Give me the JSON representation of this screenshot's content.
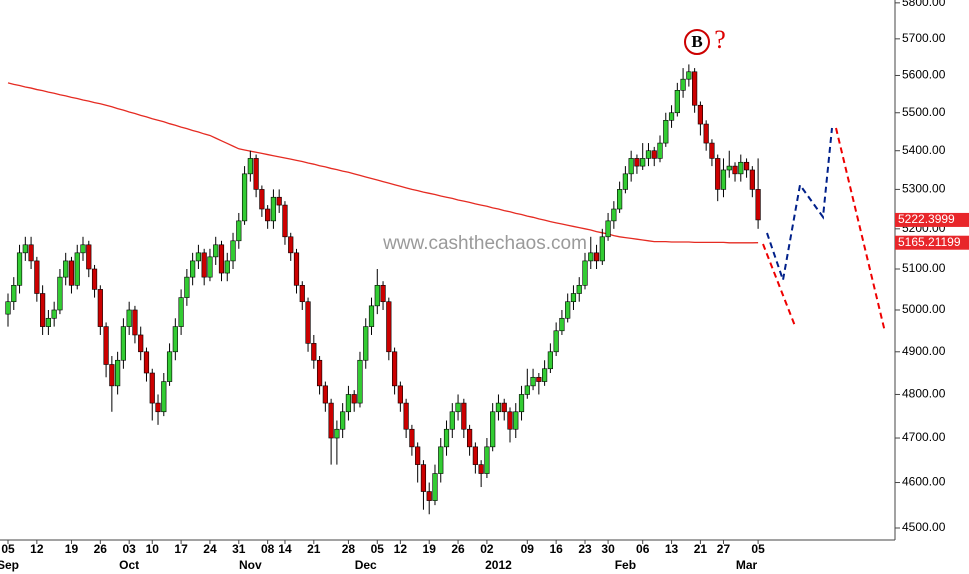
{
  "chart_data": {
    "type": "candlestick",
    "log_scale": true,
    "up_color": "#33cc33",
    "down_color": "#cc0000",
    "ylim": [
      4474,
      5808
    ],
    "yticks": [
      {
        "value": 5800,
        "label": "5800.00"
      },
      {
        "value": 5700,
        "label": "5700.00"
      },
      {
        "value": 5600,
        "label": "5600.00"
      },
      {
        "value": 5500,
        "label": "5500.00"
      },
      {
        "value": 5400,
        "label": "5400.00"
      },
      {
        "value": 5300,
        "label": "5300.00"
      },
      {
        "value": 5200,
        "label": "5200.00"
      },
      {
        "value": 5100,
        "label": "5100.00"
      },
      {
        "value": 5000,
        "label": "5000.00"
      },
      {
        "value": 4900,
        "label": "4900.00"
      },
      {
        "value": 4800,
        "label": "4800.00"
      },
      {
        "value": 4700,
        "label": "4700.00"
      },
      {
        "value": 4600,
        "label": "4600.00"
      },
      {
        "value": 4500,
        "label": "4500.00"
      }
    ],
    "categories": [
      "05",
      null,
      null,
      null,
      null,
      "12",
      null,
      null,
      null,
      null,
      null,
      "19",
      null,
      null,
      null,
      null,
      "26",
      null,
      null,
      null,
      null,
      "03",
      null,
      null,
      null,
      "10",
      null,
      null,
      null,
      null,
      "17",
      null,
      null,
      null,
      null,
      "24",
      null,
      null,
      null,
      null,
      "31",
      null,
      null,
      null,
      null,
      "08",
      null,
      null,
      "14",
      null,
      null,
      null,
      null,
      "21",
      null,
      null,
      null,
      null,
      null,
      "28",
      null,
      null,
      null,
      null,
      "05",
      null,
      null,
      null,
      "12",
      null,
      null,
      null,
      null,
      "19",
      null,
      null,
      null,
      null,
      "26",
      null,
      null,
      null,
      null,
      "02",
      null,
      null,
      null,
      null,
      null,
      null,
      "09",
      null,
      null,
      null,
      null,
      "16",
      null,
      null,
      null,
      null,
      "23",
      null,
      null,
      null,
      "30",
      null,
      null,
      null,
      null,
      null,
      "06",
      null,
      null,
      null,
      null,
      "13",
      null,
      null,
      null,
      null,
      "21",
      null,
      null,
      null,
      "27",
      null,
      null,
      null,
      null,
      null,
      "05"
    ],
    "months": [
      "Sep",
      null,
      null,
      null,
      null,
      null,
      null,
      null,
      null,
      null,
      null,
      null,
      null,
      null,
      null,
      null,
      null,
      null,
      null,
      null,
      null,
      "Oct",
      null,
      null,
      null,
      null,
      null,
      null,
      null,
      null,
      null,
      null,
      null,
      null,
      null,
      null,
      null,
      null,
      null,
      null,
      null,
      null,
      "Nov",
      null,
      null,
      null,
      null,
      null,
      null,
      null,
      null,
      null,
      null,
      null,
      null,
      null,
      null,
      null,
      null,
      null,
      null,
      null,
      "Dec",
      null,
      null,
      null,
      null,
      null,
      null,
      null,
      null,
      null,
      null,
      null,
      null,
      null,
      null,
      null,
      null,
      null,
      null,
      null,
      null,
      null,
      null,
      "2012",
      null,
      null,
      null,
      null,
      null,
      null,
      null,
      null,
      null,
      null,
      null,
      null,
      null,
      null,
      null,
      null,
      null,
      null,
      null,
      null,
      null,
      "Feb",
      null,
      null,
      null,
      null,
      null,
      null,
      null,
      null,
      null,
      null,
      null,
      null,
      null,
      null,
      null,
      null,
      null,
      null,
      null,
      null,
      "Mar",
      null,
      null
    ],
    "candles": [
      [
        4990,
        5040,
        4960,
        5020
      ],
      [
        5020,
        5080,
        5000,
        5060
      ],
      [
        5060,
        5160,
        5040,
        5140
      ],
      [
        5140,
        5180,
        5120,
        5160
      ],
      [
        5160,
        5180,
        5100,
        5120
      ],
      [
        5120,
        5130,
        5020,
        5040
      ],
      [
        5040,
        5060,
        4940,
        4960
      ],
      [
        4960,
        5000,
        4940,
        4980
      ],
      [
        4980,
        5020,
        4960,
        5000
      ],
      [
        5000,
        5100,
        4990,
        5080
      ],
      [
        5080,
        5140,
        5060,
        5120
      ],
      [
        5120,
        5130,
        5040,
        5060
      ],
      [
        5060,
        5160,
        5050,
        5140
      ],
      [
        5140,
        5180,
        5120,
        5160
      ],
      [
        5160,
        5170,
        5080,
        5100
      ],
      [
        5100,
        5110,
        5030,
        5050
      ],
      [
        5050,
        5060,
        4940,
        4960
      ],
      [
        4960,
        4970,
        4840,
        4870
      ],
      [
        4870,
        4890,
        4760,
        4820
      ],
      [
        4820,
        4900,
        4800,
        4880
      ],
      [
        4880,
        4980,
        4860,
        4960
      ],
      [
        4960,
        5020,
        4940,
        5000
      ],
      [
        5000,
        5010,
        4920,
        4940
      ],
      [
        4940,
        4960,
        4880,
        4900
      ],
      [
        4900,
        4910,
        4830,
        4850
      ],
      [
        4850,
        4860,
        4740,
        4780
      ],
      [
        4780,
        4800,
        4730,
        4760
      ],
      [
        4760,
        4850,
        4750,
        4830
      ],
      [
        4830,
        4920,
        4820,
        4900
      ],
      [
        4900,
        4980,
        4880,
        4960
      ],
      [
        4960,
        5050,
        4940,
        5030
      ],
      [
        5030,
        5100,
        5010,
        5080
      ],
      [
        5080,
        5140,
        5060,
        5120
      ],
      [
        5120,
        5160,
        5100,
        5140
      ],
      [
        5140,
        5150,
        5060,
        5080
      ],
      [
        5080,
        5150,
        5070,
        5130
      ],
      [
        5130,
        5180,
        5110,
        5160
      ],
      [
        5160,
        5170,
        5070,
        5090
      ],
      [
        5090,
        5140,
        5070,
        5120
      ],
      [
        5120,
        5190,
        5100,
        5170
      ],
      [
        5170,
        5240,
        5150,
        5220
      ],
      [
        5220,
        5360,
        5210,
        5340
      ],
      [
        5340,
        5400,
        5320,
        5380
      ],
      [
        5380,
        5390,
        5280,
        5300
      ],
      [
        5300,
        5310,
        5230,
        5250
      ],
      [
        5250,
        5260,
        5200,
        5220
      ],
      [
        5220,
        5300,
        5200,
        5280
      ],
      [
        5280,
        5300,
        5240,
        5260
      ],
      [
        5260,
        5270,
        5160,
        5180
      ],
      [
        5180,
        5190,
        5120,
        5140
      ],
      [
        5140,
        5150,
        5040,
        5060
      ],
      [
        5060,
        5070,
        5000,
        5020
      ],
      [
        5020,
        5030,
        4900,
        4920
      ],
      [
        4920,
        4940,
        4860,
        4880
      ],
      [
        4880,
        4890,
        4800,
        4820
      ],
      [
        4820,
        4830,
        4760,
        4780
      ],
      [
        4780,
        4790,
        4640,
        4700
      ],
      [
        4700,
        4740,
        4640,
        4720
      ],
      [
        4720,
        4780,
        4700,
        4760
      ],
      [
        4760,
        4820,
        4740,
        4800
      ],
      [
        4800,
        4810,
        4760,
        4780
      ],
      [
        4780,
        4900,
        4770,
        4880
      ],
      [
        4880,
        4980,
        4860,
        4960
      ],
      [
        4960,
        5030,
        4940,
        5010
      ],
      [
        5010,
        5100,
        4990,
        5060
      ],
      [
        5060,
        5070,
        5000,
        5020
      ],
      [
        5020,
        5030,
        4880,
        4900
      ],
      [
        4900,
        4910,
        4800,
        4820
      ],
      [
        4820,
        4830,
        4760,
        4780
      ],
      [
        4780,
        4790,
        4700,
        4720
      ],
      [
        4720,
        4730,
        4660,
        4680
      ],
      [
        4680,
        4690,
        4600,
        4640
      ],
      [
        4640,
        4650,
        4540,
        4580
      ],
      [
        4580,
        4600,
        4530,
        4560
      ],
      [
        4560,
        4640,
        4550,
        4620
      ],
      [
        4620,
        4700,
        4600,
        4680
      ],
      [
        4680,
        4740,
        4660,
        4720
      ],
      [
        4720,
        4780,
        4700,
        4760
      ],
      [
        4760,
        4800,
        4740,
        4780
      ],
      [
        4780,
        4790,
        4700,
        4720
      ],
      [
        4720,
        4730,
        4660,
        4680
      ],
      [
        4680,
        4690,
        4620,
        4640
      ],
      [
        4640,
        4650,
        4590,
        4620
      ],
      [
        4620,
        4700,
        4610,
        4680
      ],
      [
        4680,
        4780,
        4670,
        4760
      ],
      [
        4760,
        4800,
        4740,
        4780
      ],
      [
        4780,
        4790,
        4740,
        4760
      ],
      [
        4760,
        4770,
        4690,
        4720
      ],
      [
        4720,
        4780,
        4700,
        4760
      ],
      [
        4760,
        4820,
        4740,
        4800
      ],
      [
        4800,
        4860,
        4790,
        4820
      ],
      [
        4820,
        4860,
        4810,
        4840
      ],
      [
        4840,
        4850,
        4800,
        4830
      ],
      [
        4830,
        4880,
        4820,
        4860
      ],
      [
        4860,
        4920,
        4850,
        4900
      ],
      [
        4900,
        4970,
        4890,
        4950
      ],
      [
        4950,
        5000,
        4940,
        4980
      ],
      [
        4980,
        5040,
        4970,
        5020
      ],
      [
        5020,
        5060,
        5000,
        5040
      ],
      [
        5040,
        5080,
        5020,
        5060
      ],
      [
        5060,
        5140,
        5050,
        5120
      ],
      [
        5120,
        5180,
        5100,
        5140
      ],
      [
        5140,
        5160,
        5100,
        5120
      ],
      [
        5120,
        5200,
        5110,
        5180
      ],
      [
        5180,
        5240,
        5170,
        5220
      ],
      [
        5220,
        5270,
        5200,
        5250
      ],
      [
        5250,
        5320,
        5240,
        5300
      ],
      [
        5300,
        5360,
        5290,
        5340
      ],
      [
        5340,
        5400,
        5320,
        5380
      ],
      [
        5380,
        5390,
        5340,
        5360
      ],
      [
        5360,
        5420,
        5350,
        5380
      ],
      [
        5380,
        5420,
        5360,
        5400
      ],
      [
        5400,
        5410,
        5360,
        5380
      ],
      [
        5380,
        5440,
        5370,
        5420
      ],
      [
        5420,
        5500,
        5410,
        5480
      ],
      [
        5480,
        5520,
        5460,
        5500
      ],
      [
        5500,
        5580,
        5490,
        5560
      ],
      [
        5560,
        5620,
        5540,
        5590
      ],
      [
        5590,
        5630,
        5570,
        5610
      ],
      [
        5610,
        5620,
        5500,
        5520
      ],
      [
        5520,
        5530,
        5440,
        5470
      ],
      [
        5470,
        5480,
        5400,
        5420
      ],
      [
        5420,
        5430,
        5360,
        5380
      ],
      [
        5380,
        5390,
        5270,
        5300
      ],
      [
        5300,
        5380,
        5280,
        5350
      ],
      [
        5350,
        5400,
        5330,
        5360
      ],
      [
        5360,
        5370,
        5320,
        5340
      ],
      [
        5340,
        5390,
        5320,
        5370
      ],
      [
        5370,
        5380,
        5330,
        5350
      ],
      [
        5350,
        5360,
        5280,
        5300
      ],
      [
        5300,
        5380,
        5200,
        5222.3999
      ]
    ],
    "ma": {
      "color": "#e52b22",
      "values": [
        5580,
        5576,
        5573,
        5569,
        5566,
        5562,
        5559,
        5555,
        5552,
        5548,
        5545,
        5541,
        5538,
        5534,
        5531,
        5527,
        5524,
        5520,
        5516,
        5511,
        5507,
        5502,
        5498,
        5493,
        5489,
        5484,
        5480,
        5476,
        5471,
        5467,
        5462,
        5458,
        5453,
        5449,
        5444,
        5440,
        5433,
        5426,
        5419,
        5412,
        5405,
        5402,
        5399,
        5396,
        5393,
        5390,
        5387,
        5384,
        5381,
        5378,
        5375,
        5372,
        5368,
        5365,
        5361,
        5358,
        5354,
        5351,
        5347,
        5344,
        5340,
        5336,
        5332,
        5328,
        5324,
        5320,
        5316,
        5312,
        5308,
        5304,
        5300,
        5297,
        5293,
        5290,
        5287,
        5283,
        5280,
        5277,
        5273,
        5270,
        5267,
        5263,
        5260,
        5257,
        5253,
        5250,
        5246,
        5243,
        5239,
        5236,
        5232,
        5229,
        5225,
        5222,
        5218,
        5215,
        5212,
        5209,
        5206,
        5203,
        5200,
        5197,
        5193,
        5190,
        5187,
        5183,
        5180,
        5178,
        5176,
        5174,
        5172,
        5170,
        5168,
        5168,
        5168,
        5167,
        5167,
        5167,
        5167,
        5166,
        5166,
        5166,
        5166,
        5166,
        5166,
        5165,
        5165,
        5165,
        5165,
        5165,
        5165.21199
      ]
    },
    "annotations": {
      "wave": "B",
      "question": "?",
      "watermark": "www.cashthechaos.com"
    }
  }
}
